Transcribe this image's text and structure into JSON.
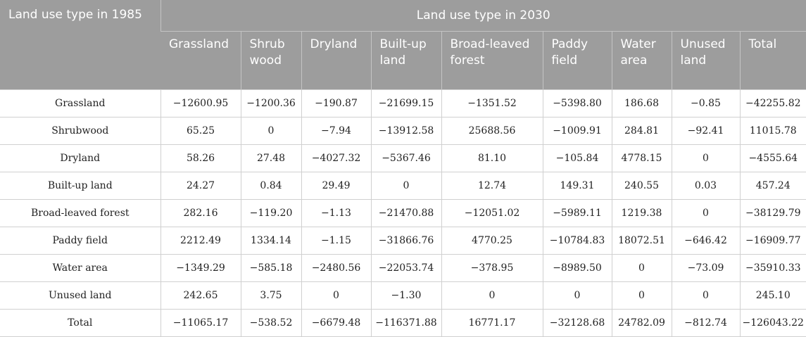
{
  "header": {
    "corner": "Land use type in 1985",
    "group": "Land use type in 2030",
    "columns": [
      [
        "Grassland"
      ],
      [
        "Shrub",
        "wood"
      ],
      [
        "Dryland"
      ],
      [
        "Built-up",
        "land"
      ],
      [
        "Broad-leaved",
        "forest"
      ],
      [
        "Paddy",
        "field"
      ],
      [
        "Water",
        "area"
      ],
      [
        "Unused",
        "land"
      ],
      [
        "Total"
      ]
    ]
  },
  "rows": [
    {
      "label": "Grassland",
      "values": [
        "−12600.95",
        "−1200.36",
        "−190.87",
        "−21699.15",
        "−1351.52",
        "−5398.80",
        "186.68",
        "−0.85",
        "−42255.82"
      ]
    },
    {
      "label": "Shrubwood",
      "values": [
        "65.25",
        "0",
        "−7.94",
        "−13912.58",
        "25688.56",
        "−1009.91",
        "284.81",
        "−92.41",
        "11015.78"
      ]
    },
    {
      "label": "Dryland",
      "values": [
        "58.26",
        "27.48",
        "−4027.32",
        "−5367.46",
        "81.10",
        "−105.84",
        "4778.15",
        "0",
        "−4555.64"
      ]
    },
    {
      "label": "Built-up land",
      "values": [
        "24.27",
        "0.84",
        "29.49",
        "0",
        "12.74",
        "149.31",
        "240.55",
        "0.03",
        "457.24"
      ]
    },
    {
      "label": "Broad-leaved forest",
      "values": [
        "282.16",
        "−119.20",
        "−1.13",
        "−21470.88",
        "−12051.02",
        "−5989.11",
        "1219.38",
        "0",
        "−38129.79"
      ]
    },
    {
      "label": "Paddy field",
      "values": [
        "2212.49",
        "1334.14",
        "−1.15",
        "−31866.76",
        "4770.25",
        "−10784.83",
        "18072.51",
        "−646.42",
        "−16909.77"
      ]
    },
    {
      "label": "Water area",
      "values": [
        "−1349.29",
        "−585.18",
        "−2480.56",
        "−22053.74",
        "−378.95",
        "−8989.50",
        "0",
        "−73.09",
        "−35910.33"
      ]
    },
    {
      "label": "Unused land",
      "values": [
        "242.65",
        "3.75",
        "0",
        "−1.30",
        "0",
        "0",
        "0",
        "0",
        "245.10"
      ]
    },
    {
      "label": "Total",
      "values": [
        "−11065.17",
        "−538.52",
        "−6679.48",
        "−116371.88",
        "16771.17",
        "−32128.68",
        "24782.09",
        "−812.74",
        "−126043.22"
      ]
    }
  ]
}
